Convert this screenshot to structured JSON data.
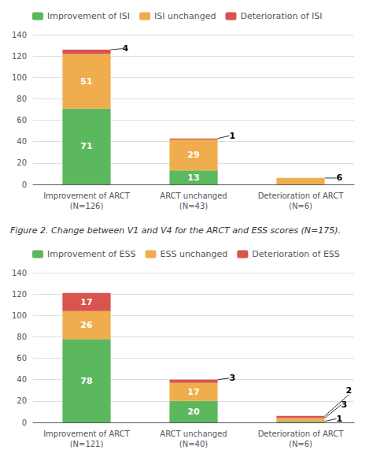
{
  "chart_data": [
    {
      "type": "bar",
      "stacked": true,
      "data_labels": true,
      "grid": true,
      "legend": "upper left",
      "categories": [
        "Improvement of ARCT\n(N=126)",
        "ARCT unchanged\n(N=43)",
        "Deterioration of ARCT\n(N=6)"
      ],
      "series": [
        {
          "name": "Improvement of ISI",
          "color": "#5cb85c",
          "values": [
            71,
            13,
            0
          ]
        },
        {
          "name": "ISI unchanged",
          "color": "#f0ad4e",
          "values": [
            51,
            29,
            6
          ]
        },
        {
          "name": "Deterioration of ISI",
          "color": "#d9534f",
          "values": [
            4,
            1,
            0
          ]
        }
      ],
      "ylim": [
        0,
        140
      ],
      "yticks": [
        0,
        20,
        40,
        60,
        80,
        100,
        120,
        140
      ]
    },
    {
      "type": "bar",
      "stacked": true,
      "data_labels": true,
      "grid": true,
      "legend": "upper left",
      "title": "Figure 2. Change between V1 and V4 for the ARCT and ESS scores (N=175).",
      "categories": [
        "Improvement of ARCT\n(N=121)",
        "ARCT unchanged\n(N=40)",
        "Deterioration of ARCT\n(N=6)"
      ],
      "series": [
        {
          "name": "Improvement of ESS",
          "color": "#5cb85c",
          "values": [
            78,
            20,
            1
          ]
        },
        {
          "name": "ESS unchanged",
          "color": "#f0ad4e",
          "values": [
            26,
            17,
            3
          ]
        },
        {
          "name": "Deterioration of ESS",
          "color": "#d9534f",
          "values": [
            17,
            3,
            2
          ]
        }
      ],
      "ylim": [
        0,
        140
      ],
      "yticks": [
        0,
        20,
        40,
        60,
        80,
        100,
        120,
        140
      ]
    }
  ]
}
